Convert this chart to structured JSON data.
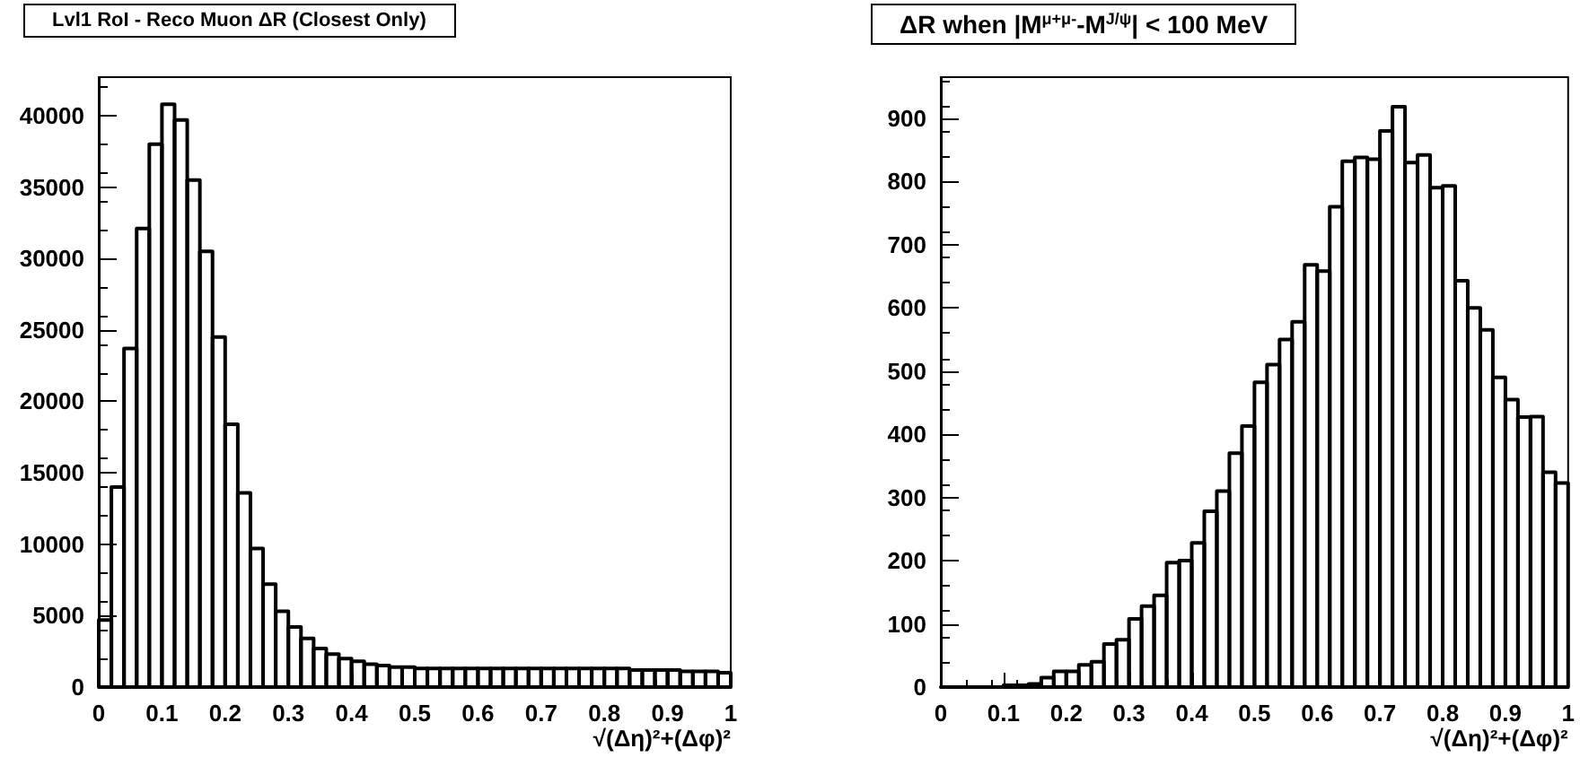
{
  "chart_data": [
    {
      "type": "histogram",
      "title": "Lvl1 RoI - Reco Muon ΔR (Closest Only)",
      "xlabel": "√(Δη)²+(Δφ)²",
      "color": "#000000",
      "grid": false,
      "bins": [
        0,
        0.02,
        0.04,
        0.06,
        0.08,
        0.1,
        0.12,
        0.14,
        0.16,
        0.18,
        0.2,
        0.22,
        0.24,
        0.26,
        0.28,
        0.3,
        0.32,
        0.34,
        0.36,
        0.38,
        0.4,
        0.42,
        0.44,
        0.46,
        0.48,
        0.5,
        0.52,
        0.54,
        0.56,
        0.58,
        0.6,
        0.62,
        0.64,
        0.66,
        0.68,
        0.7,
        0.72,
        0.74,
        0.76,
        0.78,
        0.8,
        0.82,
        0.84,
        0.86,
        0.88,
        0.9,
        0.92,
        0.94,
        0.96,
        0.98,
        1
      ],
      "values": [
        4700,
        14000,
        23700,
        32100,
        38000,
        40800,
        39700,
        35500,
        30500,
        24500,
        18400,
        13600,
        9700,
        7200,
        5300,
        4200,
        3400,
        2700,
        2300,
        2000,
        1800,
        1600,
        1500,
        1400,
        1400,
        1300,
        1300,
        1300,
        1300,
        1300,
        1300,
        1300,
        1300,
        1300,
        1300,
        1300,
        1300,
        1300,
        1300,
        1300,
        1300,
        1300,
        1200,
        1200,
        1200,
        1200,
        1100,
        1100,
        1100,
        1000
      ],
      "xlim": [
        0,
        1
      ],
      "xticks": [
        0,
        0.1,
        0.2,
        0.3,
        0.4,
        0.5,
        0.6,
        0.7,
        0.8,
        0.9,
        1
      ],
      "ylim": [
        0,
        42700
      ],
      "yticks": [
        0,
        5000,
        10000,
        15000,
        20000,
        25000,
        30000,
        35000,
        40000
      ]
    },
    {
      "type": "histogram",
      "title": "ΔR when |M$^{μ+μ-}$-M$^{J/ψ}$| < 100 MeV",
      "xlabel": "√(Δη)²+(Δφ)²",
      "color": "#000000",
      "grid": false,
      "bins": [
        0,
        0.02,
        0.04,
        0.06,
        0.08,
        0.1,
        0.12,
        0.14,
        0.16,
        0.18,
        0.2,
        0.22,
        0.24,
        0.26,
        0.28,
        0.3,
        0.32,
        0.34,
        0.36,
        0.38,
        0.4,
        0.42,
        0.44,
        0.46,
        0.48,
        0.5,
        0.52,
        0.54,
        0.56,
        0.58,
        0.6,
        0.62,
        0.64,
        0.66,
        0.68,
        0.7,
        0.72,
        0.74,
        0.76,
        0.78,
        0.8,
        0.82,
        0.84,
        0.86,
        0.88,
        0.9,
        0.92,
        0.94,
        0.96,
        0.98,
        1
      ],
      "values": [
        0,
        0,
        0,
        0,
        0,
        3,
        3,
        5,
        15,
        25,
        25,
        35,
        40,
        68,
        75,
        108,
        128,
        145,
        197,
        200,
        228,
        278,
        310,
        370,
        413,
        482,
        510,
        550,
        578,
        668,
        658,
        760,
        832,
        838,
        835,
        880,
        918,
        830,
        842,
        790,
        793,
        643,
        600,
        565,
        490,
        455,
        427,
        428,
        340,
        323
      ],
      "xlim": [
        0,
        1
      ],
      "xticks": [
        0,
        0.1,
        0.2,
        0.3,
        0.4,
        0.5,
        0.6,
        0.7,
        0.8,
        0.9,
        1
      ],
      "ylim": [
        0,
        965
      ],
      "yticks": [
        0,
        100,
        200,
        300,
        400,
        500,
        600,
        700,
        800,
        900
      ]
    }
  ]
}
